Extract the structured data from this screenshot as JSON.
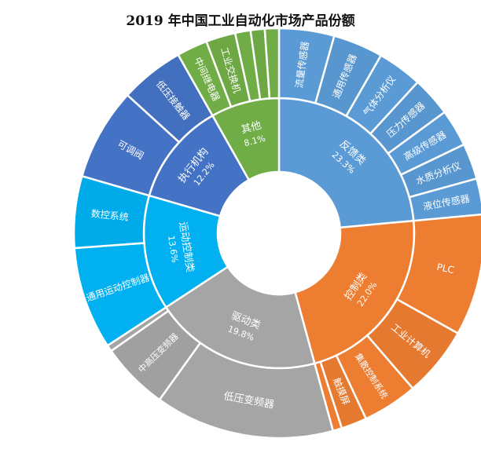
{
  "chart_data": {
    "type": "sunburst",
    "title": "2019 年中国工业自动化市场产品份额",
    "colors": {
      "反馈类": "#5b9bd5",
      "控制类": "#ed7d31",
      "驱动类": "#a5a5a5",
      "运动控制类": "#00b0f0",
      "执行机构": "#4472c4",
      "其他": "#70ad47"
    },
    "categories": [
      {
        "name": "反馈类",
        "value": 23.3,
        "value_label": "23.3%",
        "children": [
          {
            "name": "流量传感器",
            "value": 4.3
          },
          {
            "name": "通用传感器",
            "value": 3.9
          },
          {
            "name": "气体分析仪",
            "value": 3.5
          },
          {
            "name": "压力传感器",
            "value": 3.1
          },
          {
            "name": "高级传感器",
            "value": 2.9
          },
          {
            "name": "水质分析仪",
            "value": 2.8
          },
          {
            "name": "液位传感器",
            "value": 2.8
          }
        ]
      },
      {
        "name": "控制类",
        "value": 22.0,
        "value_label": "22.0%",
        "children": [
          {
            "name": "PLC",
            "value": 9.5
          },
          {
            "name": "工业计算机",
            "value": 5.5
          },
          {
            "name": "集散控制系统",
            "value": 4.3
          },
          {
            "name": "触摸屏",
            "value": 2.0
          },
          {
            "name": "",
            "value": 0.7
          }
        ]
      },
      {
        "name": "驱动类",
        "value": 19.8,
        "value_label": "19.8%",
        "children": [
          {
            "name": "低压变频器",
            "value": 14.0
          },
          {
            "name": "中高压变频器",
            "value": 5.3
          },
          {
            "name": "",
            "value": 0.5
          }
        ]
      },
      {
        "name": "运动控制类",
        "value": 13.6,
        "value_label": "13.6%",
        "children": [
          {
            "name": "通用运动控制器",
            "value": 8.0
          },
          {
            "name": "数控系统",
            "value": 5.6
          }
        ]
      },
      {
        "name": "执行机构",
        "value": 12.2,
        "value_label": "12.2%",
        "children": [
          {
            "name": "可调阀",
            "value": 7.2
          },
          {
            "name": "低压接触器",
            "value": 5.0
          }
        ]
      },
      {
        "name": "其他",
        "value": 8.1,
        "value_label": "8.1%",
        "children": [
          {
            "name": "中间继电器",
            "value": 2.4
          },
          {
            "name": "工业交换机",
            "value": 2.3
          },
          {
            "name": "",
            "value": 1.2
          },
          {
            "name": "",
            "value": 1.1
          },
          {
            "name": "",
            "value": 1.1
          }
        ]
      }
    ]
  }
}
